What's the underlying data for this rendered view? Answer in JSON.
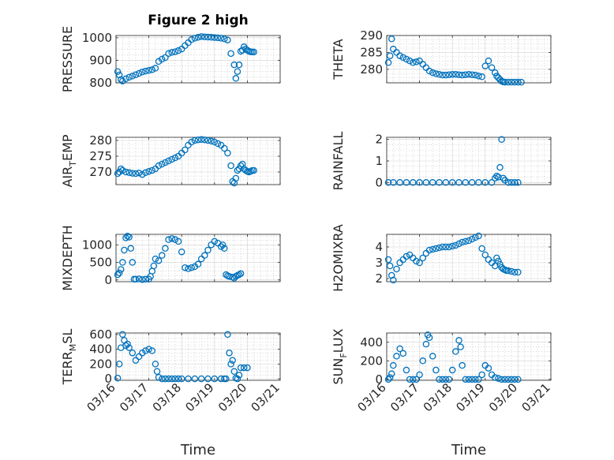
{
  "figure": {
    "title": "Figure 2 high",
    "xlabel": "Time"
  },
  "colors": {
    "marker": "#0072BD",
    "axis": "#262626",
    "grid": "#b0b0b0"
  },
  "chart_data": [
    {
      "type": "scatter",
      "name": "PRESSURE",
      "ylabel": "PRESSURE",
      "ylim": [
        800,
        1010
      ],
      "yticks": [
        800,
        900,
        1000
      ],
      "xlim": [
        "03/16",
        "03/21"
      ],
      "xticks": [
        "03/16",
        "03/17",
        "03/18",
        "03/19",
        "03/20",
        "03/21"
      ],
      "grid": true,
      "marker": "open-circle",
      "x": [
        16.05,
        16.1,
        16.15,
        16.2,
        16.3,
        16.4,
        16.5,
        16.6,
        16.7,
        16.8,
        16.9,
        17.0,
        17.1,
        17.2,
        17.3,
        17.4,
        17.5,
        17.6,
        17.7,
        17.8,
        17.9,
        18.0,
        18.1,
        18.2,
        18.3,
        18.4,
        18.5,
        18.6,
        18.7,
        18.8,
        18.9,
        19.0,
        19.1,
        19.2,
        19.3,
        19.4,
        19.5,
        19.6,
        19.65,
        19.7,
        19.75,
        19.8,
        19.85,
        19.9,
        19.95,
        20.0,
        20.05,
        20.1,
        20.15,
        20.2
      ],
      "y": [
        850,
        835,
        815,
        808,
        818,
        825,
        830,
        836,
        842,
        848,
        852,
        855,
        858,
        865,
        895,
        905,
        912,
        930,
        935,
        938,
        943,
        950,
        965,
        978,
        992,
        998,
        1002,
        1005,
        1004,
        1003,
        1002,
        1001,
        1000,
        998,
        995,
        990,
        930,
        880,
        820,
        850,
        880,
        940,
        945,
        960,
        950,
        945,
        940,
        938,
        937,
        937
      ]
    },
    {
      "type": "scatter",
      "name": "THETA",
      "ylabel": "THETA",
      "ylim": [
        276,
        290
      ],
      "yticks": [
        280,
        285,
        290
      ],
      "xlim": [
        "03/16",
        "03/21"
      ],
      "xticks": [
        "03/16",
        "03/17",
        "03/18",
        "03/19",
        "03/20",
        "03/21"
      ],
      "grid": true,
      "marker": "open-circle",
      "x": [
        16.05,
        16.1,
        16.15,
        16.2,
        16.3,
        16.4,
        16.5,
        16.6,
        16.7,
        16.8,
        16.9,
        17.0,
        17.1,
        17.2,
        17.3,
        17.4,
        17.5,
        17.6,
        17.7,
        17.8,
        17.9,
        18.0,
        18.1,
        18.2,
        18.3,
        18.4,
        18.5,
        18.6,
        18.7,
        18.8,
        18.9,
        19.0,
        19.1,
        19.2,
        19.3,
        19.35,
        19.4,
        19.45,
        19.5,
        19.55,
        19.6,
        19.7,
        19.8,
        19.9,
        20.0,
        20.1
      ],
      "y": [
        282,
        284,
        289,
        286,
        285,
        284,
        283.5,
        283,
        282.5,
        282,
        282.2,
        282.5,
        281.5,
        280.5,
        279.5,
        279,
        278.7,
        278.5,
        278.3,
        278.3,
        278.4,
        278.5,
        278.5,
        278.4,
        278.3,
        278.4,
        278.5,
        278.4,
        278.3,
        278,
        277.8,
        281,
        282.5,
        280.5,
        279,
        278,
        277.5,
        277,
        276.5,
        276.3,
        276.2,
        276.2,
        276.2,
        276.2,
        276.2,
        276.2
      ]
    },
    {
      "type": "scatter",
      "name": "AIR_TEMP",
      "ylabel": "AIR_TEMP",
      "ylim": [
        266,
        281
      ],
      "yticks": [
        270,
        275,
        280
      ],
      "xlim": [
        "03/16",
        "03/21"
      ],
      "xticks": [
        "03/16",
        "03/17",
        "03/18",
        "03/19",
        "03/20",
        "03/21"
      ],
      "grid": true,
      "marker": "open-circle",
      "x": [
        16.05,
        16.1,
        16.15,
        16.2,
        16.3,
        16.4,
        16.5,
        16.6,
        16.7,
        16.8,
        16.9,
        17.0,
        17.1,
        17.2,
        17.3,
        17.4,
        17.5,
        17.6,
        17.7,
        17.8,
        17.9,
        18.0,
        18.1,
        18.2,
        18.3,
        18.4,
        18.5,
        18.6,
        18.7,
        18.8,
        18.9,
        19.0,
        19.1,
        19.2,
        19.3,
        19.4,
        19.5,
        19.55,
        19.6,
        19.65,
        19.7,
        19.75,
        19.8,
        19.85,
        19.9,
        19.95,
        20.0,
        20.05,
        20.1,
        20.15,
        20.2
      ],
      "y": [
        269.5,
        270,
        271,
        270.5,
        270,
        269.8,
        269.6,
        269.5,
        269.7,
        269.2,
        269.8,
        270.2,
        270.5,
        271,
        272,
        272.5,
        273,
        273.5,
        274,
        274.5,
        275,
        276,
        277,
        278.5,
        279.5,
        280,
        280.2,
        280.3,
        280.2,
        280,
        279.8,
        279.5,
        279,
        278.5,
        277.5,
        276,
        272,
        267,
        266.5,
        268,
        270.5,
        271,
        272,
        272.5,
        271,
        270.5,
        270.2,
        270,
        270.2,
        270.5,
        270.5
      ]
    },
    {
      "type": "scatter",
      "name": "RAINFALL",
      "ylabel": "RAINFALL",
      "ylim": [
        -0.1,
        2.1
      ],
      "yticks": [
        0,
        1,
        2
      ],
      "xlim": [
        "03/16",
        "03/21"
      ],
      "xticks": [
        "03/16",
        "03/17",
        "03/18",
        "03/19",
        "03/20",
        "03/21"
      ],
      "grid": true,
      "marker": "open-circle",
      "x": [
        16.05,
        16.2,
        16.4,
        16.6,
        16.8,
        17.0,
        17.2,
        17.4,
        17.6,
        17.8,
        18.0,
        18.2,
        18.4,
        18.6,
        18.8,
        19.0,
        19.2,
        19.3,
        19.35,
        19.4,
        19.45,
        19.5,
        19.55,
        19.6,
        19.7,
        19.8,
        19.9,
        20.0
      ],
      "y": [
        0,
        0,
        0,
        0,
        0,
        0,
        0,
        0,
        0,
        0,
        0,
        0,
        0,
        0,
        0,
        0,
        0,
        0.2,
        0.3,
        0.25,
        0.7,
        2.0,
        0.2,
        0.1,
        0,
        0,
        0,
        0
      ]
    },
    {
      "type": "scatter",
      "name": "MIXDEPTH",
      "ylabel": "MIXDEPTH",
      "ylim": [
        -50,
        1300
      ],
      "yticks": [
        0,
        500,
        1000
      ],
      "xlim": [
        "03/16",
        "03/21"
      ],
      "xticks": [
        "03/16",
        "03/17",
        "03/18",
        "03/19",
        "03/20",
        "03/21"
      ],
      "grid": true,
      "marker": "open-circle",
      "x": [
        16.05,
        16.1,
        16.15,
        16.2,
        16.25,
        16.3,
        16.35,
        16.4,
        16.45,
        16.5,
        16.55,
        16.6,
        16.7,
        16.8,
        16.9,
        17.0,
        17.05,
        17.1,
        17.15,
        17.2,
        17.3,
        17.4,
        17.5,
        17.6,
        17.7,
        17.8,
        17.9,
        18.0,
        18.1,
        18.2,
        18.3,
        18.4,
        18.5,
        18.6,
        18.7,
        18.8,
        18.9,
        19.0,
        19.1,
        19.2,
        19.25,
        19.3,
        19.35,
        19.4,
        19.45,
        19.55,
        19.6,
        19.65,
        19.7,
        19.75,
        19.8
      ],
      "y": [
        150,
        200,
        300,
        500,
        850,
        1200,
        1250,
        1220,
        900,
        500,
        20,
        20,
        30,
        10,
        20,
        20,
        100,
        250,
        400,
        600,
        550,
        700,
        900,
        1150,
        1180,
        1150,
        1100,
        800,
        350,
        320,
        350,
        380,
        450,
        600,
        700,
        850,
        1000,
        1100,
        1050,
        950,
        1000,
        900,
        150,
        120,
        100,
        80,
        50,
        100,
        130,
        150,
        180
      ]
    },
    {
      "type": "scatter",
      "name": "H2OMIXRA",
      "ylabel": "H2OMIXRA",
      "ylim": [
        1.8,
        4.8
      ],
      "yticks": [
        2,
        3,
        4
      ],
      "xlim": [
        "03/16",
        "03/21"
      ],
      "xticks": [
        "03/16",
        "03/17",
        "03/18",
        "03/19",
        "03/20",
        "03/21"
      ],
      "grid": true,
      "marker": "open-circle",
      "x": [
        16.05,
        16.1,
        16.15,
        16.2,
        16.3,
        16.4,
        16.5,
        16.6,
        16.7,
        16.8,
        16.9,
        17.0,
        17.1,
        17.2,
        17.3,
        17.4,
        17.5,
        17.6,
        17.7,
        17.8,
        17.9,
        18.0,
        18.1,
        18.2,
        18.3,
        18.4,
        18.5,
        18.6,
        18.7,
        18.8,
        18.9,
        19.0,
        19.1,
        19.2,
        19.3,
        19.35,
        19.4,
        19.45,
        19.5,
        19.55,
        19.6,
        19.65,
        19.7,
        19.8,
        19.9,
        20.0
      ],
      "y": [
        3.2,
        2.8,
        2.2,
        1.9,
        2.6,
        3.0,
        3.2,
        3.4,
        3.5,
        3.3,
        3.1,
        3.0,
        3.3,
        3.6,
        3.8,
        3.85,
        3.9,
        3.95,
        4.0,
        4.0,
        4.0,
        4.05,
        4.1,
        4.2,
        4.3,
        4.35,
        4.4,
        4.5,
        4.6,
        4.7,
        3.9,
        3.5,
        3.2,
        3.0,
        2.8,
        3.3,
        3.1,
        2.9,
        2.7,
        2.6,
        2.55,
        2.5,
        2.5,
        2.45,
        2.4,
        2.4
      ]
    },
    {
      "type": "scatter",
      "name": "TERR_MSL",
      "ylabel": "TERR_MSL",
      "ylim": [
        -20,
        620
      ],
      "yticks": [
        0,
        200,
        400,
        600
      ],
      "xlim": [
        "03/16",
        "03/21"
      ],
      "xticks": [
        "03/16",
        "03/17",
        "03/18",
        "03/19",
        "03/20",
        "03/21"
      ],
      "grid": true,
      "marker": "open-circle",
      "x": [
        16.05,
        16.1,
        16.15,
        16.2,
        16.25,
        16.3,
        16.35,
        16.4,
        16.5,
        16.6,
        16.7,
        16.8,
        16.9,
        17.0,
        17.1,
        17.2,
        17.25,
        17.3,
        17.4,
        17.5,
        17.6,
        17.7,
        17.8,
        17.9,
        18.0,
        18.2,
        18.4,
        18.6,
        18.8,
        19.0,
        19.2,
        19.3,
        19.35,
        19.4,
        19.45,
        19.5,
        19.55,
        19.6,
        19.65,
        19.7,
        19.75,
        19.8,
        19.9,
        20.0
      ],
      "y": [
        10,
        200,
        420,
        600,
        520,
        450,
        470,
        420,
        350,
        250,
        300,
        350,
        380,
        400,
        380,
        200,
        100,
        20,
        0,
        0,
        0,
        0,
        0,
        0,
        0,
        0,
        0,
        0,
        0,
        0,
        0,
        0,
        0,
        600,
        350,
        200,
        250,
        100,
        10,
        0,
        50,
        150,
        150,
        150
      ]
    },
    {
      "type": "scatter",
      "name": "SUN_FLUX",
      "ylabel": "SUN_FLUX",
      "ylim": [
        -10,
        500
      ],
      "yticks": [
        0,
        200,
        400
      ],
      "xlim": [
        "03/16",
        "03/21"
      ],
      "xticks": [
        "03/16",
        "03/17",
        "03/18",
        "03/19",
        "03/20",
        "03/21"
      ],
      "grid": true,
      "marker": "open-circle",
      "x": [
        16.05,
        16.1,
        16.15,
        16.2,
        16.3,
        16.4,
        16.5,
        16.6,
        16.7,
        16.8,
        16.9,
        17.0,
        17.1,
        17.2,
        17.25,
        17.3,
        17.4,
        17.5,
        17.6,
        17.7,
        17.8,
        17.9,
        18.0,
        18.1,
        18.2,
        18.25,
        18.3,
        18.4,
        18.5,
        18.6,
        18.7,
        18.8,
        18.9,
        19.0,
        19.1,
        19.2,
        19.3,
        19.4,
        19.5,
        19.6,
        19.7,
        19.8,
        19.9,
        20.0
      ],
      "y": [
        0,
        20,
        60,
        150,
        250,
        330,
        280,
        100,
        0,
        0,
        0,
        50,
        200,
        380,
        480,
        450,
        250,
        100,
        0,
        0,
        0,
        0,
        100,
        300,
        420,
        350,
        150,
        0,
        0,
        0,
        0,
        0,
        50,
        150,
        120,
        50,
        20,
        10,
        0,
        0,
        0,
        0,
        0,
        0
      ]
    }
  ]
}
